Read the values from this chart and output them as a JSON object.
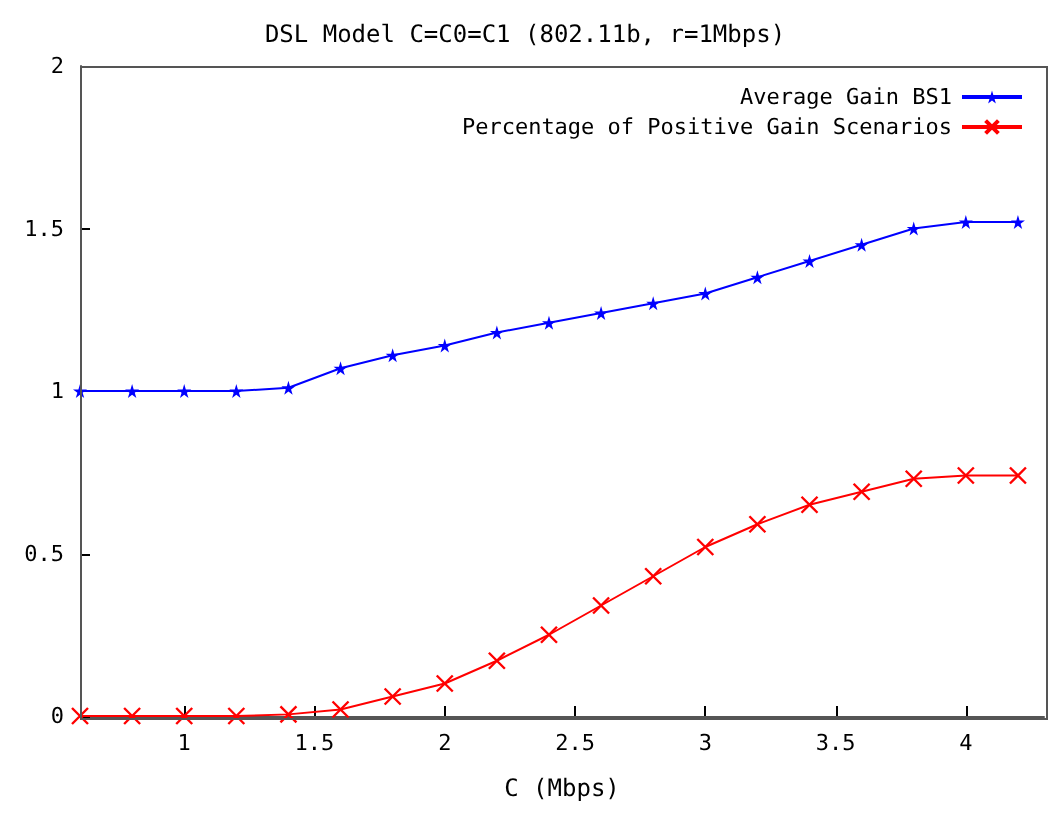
{
  "chart_data": {
    "type": "line",
    "title": "DSL Model C=C0=C1 (802.11b, r=1Mbps)",
    "xlabel": "C (Mbps)",
    "x": [
      0.6,
      0.8,
      1.0,
      1.2,
      1.4,
      1.6,
      1.8,
      2.0,
      2.2,
      2.4,
      2.6,
      2.8,
      3.0,
      3.2,
      3.4,
      3.6,
      3.8,
      4.0,
      4.2
    ],
    "series": [
      {
        "name": "Average Gain BS1",
        "color": "#0000ff",
        "marker": "star",
        "values": [
          1.0,
          1.0,
          1.0,
          1.0,
          1.01,
          1.07,
          1.11,
          1.14,
          1.18,
          1.21,
          1.24,
          1.27,
          1.3,
          1.35,
          1.4,
          1.45,
          1.5,
          1.52,
          1.52
        ]
      },
      {
        "name": "Percentage of Positive Gain Scenarios",
        "color": "#ff0000",
        "marker": "cross",
        "values": [
          0,
          0,
          0,
          0,
          0.005,
          0.02,
          0.06,
          0.1,
          0.17,
          0.25,
          0.34,
          0.43,
          0.52,
          0.59,
          0.65,
          0.69,
          0.73,
          0.74,
          0.74
        ]
      }
    ],
    "xlim": [
      0.6,
      4.3
    ],
    "xticks": [
      1,
      1.5,
      2,
      2.5,
      3,
      3.5,
      4
    ],
    "ylim": [
      0,
      2
    ],
    "yticks": [
      0,
      0.5,
      1,
      1.5,
      2
    ],
    "grid": false,
    "legend": "top right",
    "line_style": "solid"
  }
}
